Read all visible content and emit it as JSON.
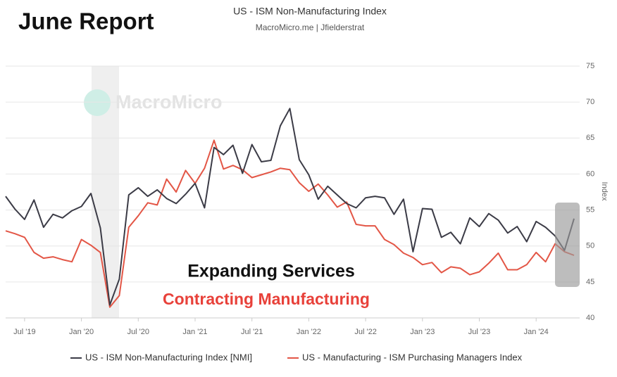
{
  "chart_data": {
    "type": "line",
    "title": "US - ISM Non-Manufacturing Index",
    "subtitle": "MacroMicro.me | Jfielderstrat",
    "annotations": [
      "June Report",
      "Expanding Services",
      "Contracting Manufacturing",
      "MacroMicro"
    ],
    "y_label": "Index",
    "categories": [
      null,
      null,
      "Jul '19",
      null,
      null,
      null,
      null,
      null,
      "Jan '20",
      null,
      null,
      null,
      null,
      null,
      "Jul '20",
      null,
      null,
      null,
      null,
      null,
      "Jan '21",
      null,
      null,
      null,
      null,
      null,
      "Jul '21",
      null,
      null,
      null,
      null,
      null,
      "Jan '22",
      null,
      null,
      null,
      null,
      null,
      "Jul '22",
      null,
      null,
      null,
      null,
      null,
      "Jan '23",
      null,
      null,
      null,
      null,
      null,
      "Jul '23",
      null,
      null,
      null,
      null,
      null,
      "Jan '24",
      null,
      null,
      null,
      null
    ],
    "series": [
      {
        "name": "US - ISM Non-Manufacturing Index [NMI]",
        "color": "#3b3b46",
        "values": [
          56.9,
          55.1,
          53.7,
          56.4,
          52.6,
          54.4,
          53.9,
          54.9,
          55.5,
          57.3,
          52.5,
          41.8,
          45.4,
          57.1,
          58.1,
          56.9,
          57.8,
          56.6,
          55.9,
          57.2,
          58.7,
          55.3,
          63.7,
          62.7,
          64.0,
          60.1,
          64.1,
          61.7,
          61.9,
          66.7,
          69.1,
          62.0,
          59.9,
          56.5,
          58.3,
          57.1,
          55.9,
          55.3,
          56.7,
          56.9,
          56.7,
          54.4,
          56.5,
          49.2,
          55.2,
          55.1,
          51.2,
          51.9,
          50.3,
          53.9,
          52.7,
          54.5,
          53.6,
          51.8,
          52.7,
          50.6,
          53.4,
          52.6,
          51.4,
          49.4,
          53.8
        ]
      },
      {
        "name": "US - Manufacturing - ISM Purchasing Managers Index",
        "color": "#e35646",
        "values": [
          52.1,
          51.7,
          51.2,
          49.1,
          48.3,
          48.5,
          48.1,
          47.8,
          50.9,
          50.1,
          49.1,
          41.5,
          43.1,
          52.6,
          54.2,
          56.0,
          55.7,
          59.3,
          57.5,
          60.5,
          58.7,
          60.8,
          64.7,
          60.7,
          61.2,
          60.6,
          59.5,
          59.9,
          60.3,
          60.8,
          60.6,
          58.8,
          57.6,
          58.6,
          57.1,
          55.4,
          56.1,
          53.0,
          52.8,
          52.8,
          50.9,
          50.2,
          49.0,
          48.4,
          47.4,
          47.7,
          46.3,
          47.1,
          46.9,
          46.0,
          46.4,
          47.6,
          49.0,
          46.7,
          46.7,
          47.4,
          49.1,
          47.8,
          50.3,
          49.2,
          48.7
        ]
      }
    ],
    "ylim": [
      40,
      75
    ],
    "yticks": [
      40,
      45,
      50,
      55,
      60,
      65,
      70,
      75
    ],
    "grid": true
  }
}
